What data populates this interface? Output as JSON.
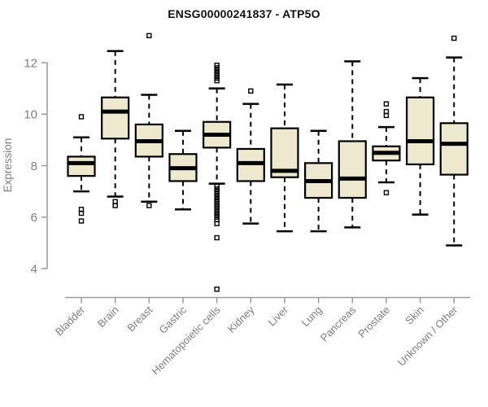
{
  "chart_data": {
    "type": "boxplot",
    "title": "ENSG00000241837 - ATP5O",
    "ylabel": "Expression",
    "xlabel": "",
    "yticks": [
      4,
      6,
      8,
      10,
      12
    ],
    "ylim": [
      3.0,
      13.3
    ],
    "grid": false,
    "legend": null,
    "colors": {
      "box_fill": "#EEE8CF",
      "box_stroke": "#000000",
      "median": "#000000",
      "whisker": "#000000",
      "axis": "#9a9a9a",
      "tick_label": "#7e7e7e",
      "title": "#111111"
    },
    "categories": [
      "Bladder",
      "Brain",
      "Breast",
      "Gastric",
      "Hematopoietic cells",
      "Kidney",
      "Liver",
      "Lung",
      "Pancreas",
      "Prostate",
      "Skin",
      "Unknown / Other"
    ],
    "series": [
      {
        "name": "Bladder",
        "low": 7.0,
        "q1": 7.6,
        "median": 8.1,
        "q3": 8.35,
        "high": 9.1,
        "outliers": [
          9.9,
          6.3,
          6.15,
          5.85
        ]
      },
      {
        "name": "Brain",
        "low": 6.8,
        "q1": 9.05,
        "median": 10.1,
        "q3": 10.65,
        "high": 12.45,
        "outliers": [
          6.6,
          6.45
        ]
      },
      {
        "name": "Breast",
        "low": 6.6,
        "q1": 8.35,
        "median": 8.95,
        "q3": 9.6,
        "high": 10.75,
        "outliers": [
          13.05,
          6.45
        ]
      },
      {
        "name": "Gastric",
        "low": 6.3,
        "q1": 7.4,
        "median": 7.9,
        "q3": 8.45,
        "high": 9.35,
        "outliers": []
      },
      {
        "name": "Hematopoietic cells",
        "low": 7.3,
        "q1": 8.7,
        "median": 9.2,
        "q3": 9.7,
        "high": 11.0,
        "outliers": [
          11.9,
          11.8,
          11.7,
          11.6,
          11.5,
          11.4,
          11.3,
          7.2,
          7.1,
          7.0,
          6.9,
          6.8,
          6.7,
          6.6,
          6.5,
          6.4,
          6.3,
          6.2,
          6.1,
          6.0,
          5.9,
          5.75,
          5.2,
          3.2
        ]
      },
      {
        "name": "Kidney",
        "low": 5.75,
        "q1": 7.4,
        "median": 8.1,
        "q3": 8.65,
        "high": 10.4,
        "outliers": [
          10.9
        ]
      },
      {
        "name": "Liver",
        "low": 5.45,
        "q1": 7.55,
        "median": 7.8,
        "q3": 9.45,
        "high": 11.15,
        "outliers": []
      },
      {
        "name": "Lung",
        "low": 5.45,
        "q1": 6.75,
        "median": 7.4,
        "q3": 8.1,
        "high": 9.35,
        "outliers": []
      },
      {
        "name": "Pancreas",
        "low": 5.6,
        "q1": 6.75,
        "median": 7.5,
        "q3": 8.95,
        "high": 12.05,
        "outliers": []
      },
      {
        "name": "Prostate",
        "low": 7.35,
        "q1": 8.2,
        "median": 8.5,
        "q3": 8.75,
        "high": 9.5,
        "outliers": [
          10.4,
          10.1,
          9.95,
          6.95
        ]
      },
      {
        "name": "Skin",
        "low": 6.1,
        "q1": 8.05,
        "median": 8.95,
        "q3": 10.65,
        "high": 11.4,
        "outliers": []
      },
      {
        "name": "Unknown / Other",
        "low": 4.9,
        "q1": 7.65,
        "median": 8.85,
        "q3": 9.65,
        "high": 12.2,
        "outliers": [
          12.95
        ]
      }
    ]
  }
}
